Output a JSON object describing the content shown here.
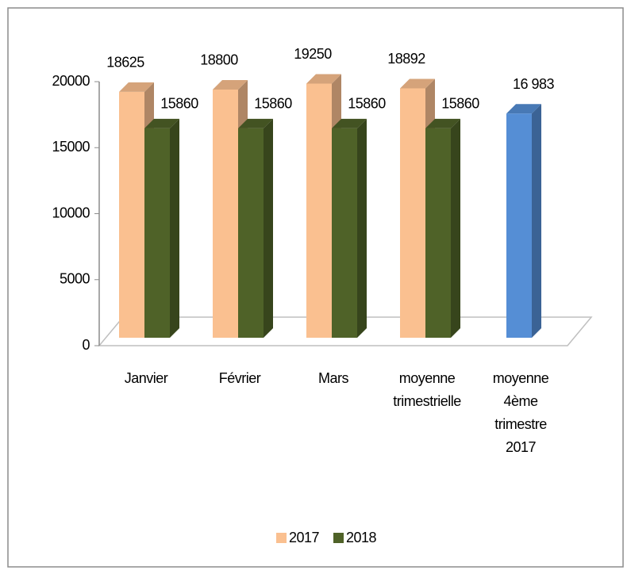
{
  "chart_data": {
    "type": "bar3d",
    "categories": [
      "Janvier",
      "Février",
      "Mars",
      "moyenne trimestrielle",
      "moyenne 4ème trimestre 2017"
    ],
    "series": [
      {
        "name": "2017",
        "color": "#fac090",
        "values": [
          18625,
          18800,
          19250,
          18892,
          null
        ]
      },
      {
        "name": "2018",
        "color": "#4f6228",
        "values": [
          15860,
          15860,
          15860,
          15860,
          null
        ]
      },
      {
        "color": "#558ed5",
        "values": [
          null,
          null,
          null,
          null,
          16983
        ],
        "value_labels": [
          null,
          null,
          null,
          null,
          "16 983"
        ]
      }
    ],
    "ylim": [
      0,
      20000
    ],
    "yticks": [
      0,
      5000,
      10000,
      15000,
      20000
    ],
    "legend": "bottom"
  }
}
